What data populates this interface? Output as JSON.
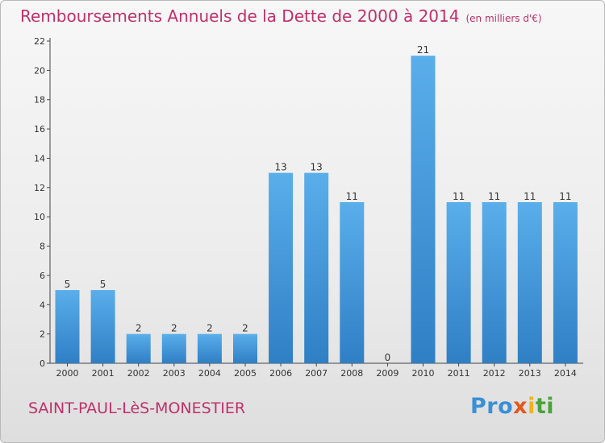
{
  "header": {
    "title": "Remboursements Annuels de la Dette de 2000 à 2014",
    "unit": "(en milliers d'€)"
  },
  "footer": {
    "commune": "SAINT-PAUL-LèS-MONESTIER",
    "brand": [
      "Pro",
      "x",
      "i",
      "ti"
    ]
  },
  "colors": {
    "accent": "#c0306a",
    "bar_light": "#5aaeea",
    "bar_dark": "#2f7fc5"
  },
  "chart_data": {
    "type": "bar",
    "categories": [
      "2000",
      "2001",
      "2002",
      "2003",
      "2004",
      "2005",
      "2006",
      "2007",
      "2008",
      "2009",
      "2010",
      "2011",
      "2012",
      "2013",
      "2014"
    ],
    "values": [
      5,
      5,
      2,
      2,
      2,
      2,
      13,
      13,
      11,
      0,
      21,
      11,
      11,
      11,
      11
    ],
    "title": "Remboursements Annuels de la Dette de 2000 à 2014",
    "xlabel": "",
    "ylabel": "",
    "ylim": [
      0,
      22
    ],
    "yticks": [
      0,
      2,
      4,
      6,
      8,
      10,
      12,
      14,
      16,
      18,
      20,
      22
    ],
    "grid": false,
    "legend": "none"
  }
}
